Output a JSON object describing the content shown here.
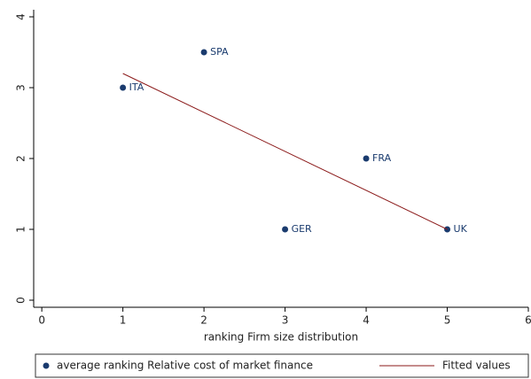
{
  "chart_data": {
    "type": "scatter",
    "x_label": "ranking Firm size distribution",
    "xlim": [
      -0.1,
      6
    ],
    "xticks": [
      0,
      1,
      2,
      3,
      4,
      5,
      6
    ],
    "ylim": [
      -0.1,
      4.1
    ],
    "yticks": [
      0,
      1,
      2,
      3,
      4
    ],
    "series": [
      {
        "name": "average ranking Relative cost of market finance",
        "color": "#1a3b6e",
        "mark": "dot",
        "x": [
          1,
          2,
          3,
          4,
          5
        ],
        "values": [
          3,
          3.5,
          1,
          2,
          1
        ],
        "point_labels": [
          "ITA",
          "SPA",
          "GER",
          "FRA",
          "UK"
        ]
      },
      {
        "name": "Fitted values",
        "color": "#8b1a1a",
        "mark": "line",
        "x": [
          1,
          5
        ],
        "values": [
          3.2,
          1.0
        ]
      }
    ]
  }
}
